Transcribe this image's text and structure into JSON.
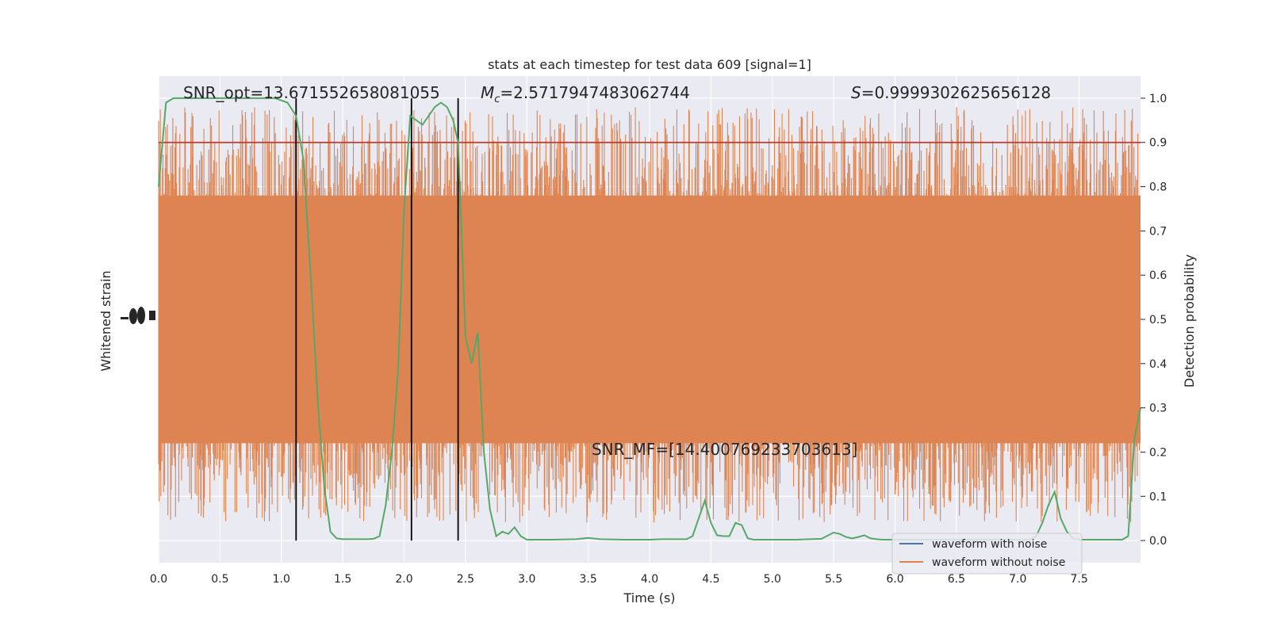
{
  "chart_data": {
    "type": "line",
    "title": "stats at each timestep for test data 609 [signal=1]",
    "xlabel": "Time (s)",
    "ylabel_left": "Whitened strain",
    "ylabel_right": "Detection probability",
    "xlim": [
      0,
      8
    ],
    "ylim_right": [
      -0.05,
      1.05
    ],
    "x_ticks": [
      "0.0",
      "0.5",
      "1.0",
      "1.5",
      "2.0",
      "2.5",
      "3.0",
      "3.5",
      "4.0",
      "4.5",
      "5.0",
      "5.5",
      "6.0",
      "6.5",
      "7.0",
      "7.5"
    ],
    "y_ticks_right": [
      "0.0",
      "0.1",
      "0.2",
      "0.3",
      "0.4",
      "0.5",
      "0.6",
      "0.7",
      "0.8",
      "0.9",
      "1.0"
    ],
    "grid": true,
    "threshold": 0.9,
    "threshold_color": "#c0392b",
    "vlines": [
      1.12,
      2.06,
      2.44
    ],
    "annotations": {
      "snr_opt": "SNR_opt=13.671552658081055",
      "mc_symbol": "M",
      "mc_sub": "c",
      "mc_value": "=2.5717947483062744",
      "s_symbol": "S",
      "s_value": "=0.9999302625656128",
      "snr_mf": "SNR_MF=[14.400769233703613]"
    },
    "legend": {
      "placement": "bottom-right",
      "entries": [
        {
          "label": "waveform with noise",
          "color": "#4c72b0"
        },
        {
          "label": "waveform without noise",
          "color": "#dd8452"
        }
      ]
    },
    "series": [
      {
        "name": "waveform without noise",
        "color": "#dd8452",
        "kind": "noise-band",
        "center": 0.5,
        "core_half_width": 0.28,
        "typical_peak": 0.93
      },
      {
        "color": "#55a868",
        "kind": "probability",
        "x": [
          0.0,
          0.06,
          0.12,
          0.25,
          0.5,
          0.75,
          0.95,
          1.05,
          1.12,
          1.18,
          1.25,
          1.3,
          1.35,
          1.4,
          1.45,
          1.5,
          1.55,
          1.6,
          1.65,
          1.7,
          1.75,
          1.8,
          1.85,
          1.9,
          1.95,
          2.0,
          2.05,
          2.1,
          2.15,
          2.2,
          2.25,
          2.3,
          2.35,
          2.4,
          2.44,
          2.5,
          2.55,
          2.6,
          2.65,
          2.7,
          2.75,
          2.8,
          2.85,
          2.9,
          2.95,
          3.0,
          3.2,
          3.4,
          3.5,
          3.6,
          3.8,
          4.0,
          4.1,
          4.2,
          4.3,
          4.35,
          4.4,
          4.45,
          4.5,
          4.55,
          4.6,
          4.65,
          4.7,
          4.75,
          4.8,
          4.85,
          4.9,
          4.95,
          5.0,
          5.1,
          5.2,
          5.3,
          5.4,
          5.5,
          5.55,
          5.6,
          5.65,
          5.7,
          5.75,
          5.8,
          5.85,
          5.9,
          6.0,
          6.2,
          6.4,
          6.6,
          6.8,
          7.0,
          7.1,
          7.15,
          7.2,
          7.25,
          7.3,
          7.35,
          7.4,
          7.45,
          7.5,
          7.6,
          7.7,
          7.75,
          7.8,
          7.85,
          7.9,
          7.95,
          8.0
        ],
        "y": [
          0.8,
          0.99,
          1.0,
          1.0,
          1.0,
          1.0,
          1.0,
          0.99,
          0.96,
          0.86,
          0.55,
          0.3,
          0.12,
          0.02,
          0.005,
          0.003,
          0.003,
          0.003,
          0.003,
          0.003,
          0.004,
          0.01,
          0.08,
          0.2,
          0.38,
          0.75,
          0.96,
          0.95,
          0.94,
          0.96,
          0.98,
          0.99,
          0.98,
          0.95,
          0.9,
          0.46,
          0.4,
          0.47,
          0.2,
          0.07,
          0.01,
          0.02,
          0.015,
          0.03,
          0.01,
          0.002,
          0.002,
          0.003,
          0.006,
          0.003,
          0.002,
          0.002,
          0.003,
          0.003,
          0.003,
          0.01,
          0.05,
          0.09,
          0.04,
          0.012,
          0.01,
          0.01,
          0.04,
          0.035,
          0.005,
          0.002,
          0.002,
          0.002,
          0.002,
          0.002,
          0.002,
          0.003,
          0.004,
          0.018,
          0.015,
          0.008,
          0.005,
          0.008,
          0.012,
          0.005,
          0.003,
          0.002,
          0.002,
          0.002,
          0.002,
          0.002,
          0.002,
          0.002,
          0.002,
          0.01,
          0.04,
          0.08,
          0.11,
          0.05,
          0.02,
          0.005,
          0.002,
          0.002,
          0.002,
          0.002,
          0.002,
          0.002,
          0.01,
          0.23,
          0.3
        ]
      }
    ]
  }
}
